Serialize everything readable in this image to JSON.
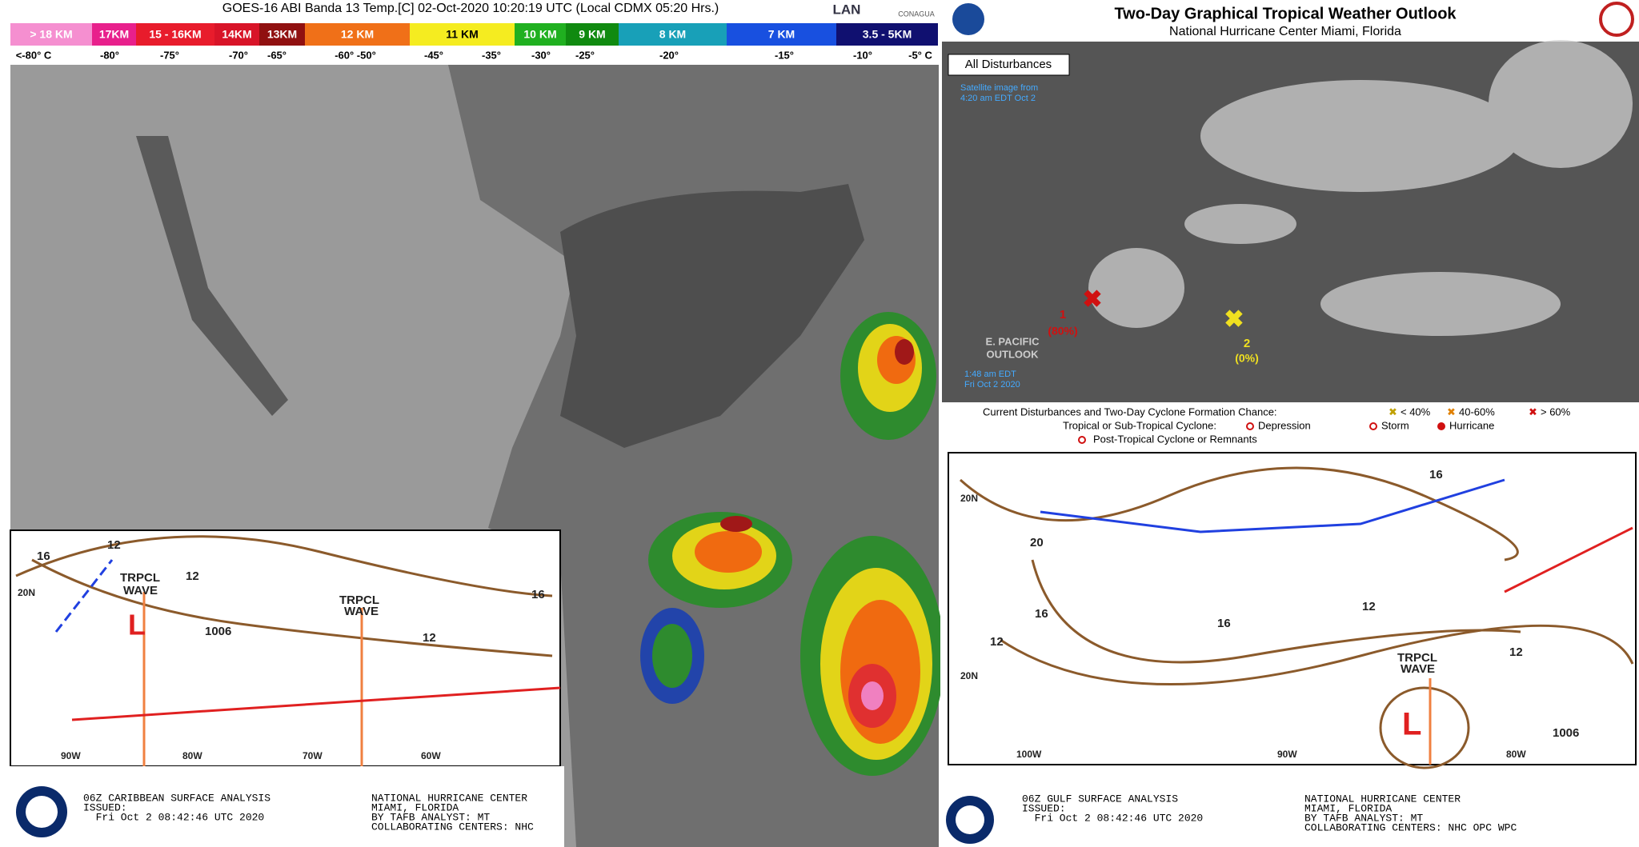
{
  "header": {
    "title": "GOES-16 ABI Banda 13 Temp.[C] 02-Oct-2020 10:20:19 UTC (Local CDMX  05:20 Hrs.)",
    "logo_lan": "LAN",
    "logo_conagua": "CONAGUA"
  },
  "colorbar": {
    "heights": [
      "> 18 KM",
      "17KM",
      "15 - 16KM",
      "14KM",
      "13KM",
      "12 KM",
      "11 KM",
      "10 KM",
      "9 KM",
      "8 KM",
      "7 KM",
      "3.5 - 5KM"
    ],
    "temps": [
      "<-80° C",
      "-80°",
      "-75°",
      "-70°",
      "-65°",
      "-60°  -50°",
      "-45°",
      "-35°",
      "-30°",
      "-25°",
      "-20°",
      "-15°",
      "-10°",
      "-5°   C"
    ]
  },
  "outlook": {
    "title": "Two-Day Graphical Tropical Weather Outlook",
    "subtitle": "National Hurricane Center Miami, Florida",
    "tab": "All Disturbances",
    "sat_line1": "Satellite image from",
    "sat_line2": "4:20 am EDT Oct 2",
    "d1": "1",
    "d1_pct": "(80%)",
    "d2": "2",
    "d2_pct": "(0%)",
    "ep_line1": "E. PACIFIC",
    "ep_line2": "OUTLOOK",
    "ep_time1": "1:48 am EDT",
    "ep_time2": "Fri Oct 2 2020"
  },
  "legend": {
    "line1": "Current Disturbances and Two-Day Cyclone Formation Chance:",
    "low": "< 40%",
    "mid": "40-60%",
    "high": "> 60%",
    "line2": "Tropical or Sub-Tropical Cyclone:",
    "depression": "Depression",
    "storm": "Storm",
    "hurricane": "Hurricane",
    "line3": "Post-Tropical Cyclone or Remnants"
  },
  "caribbean": {
    "labels": [
      "16",
      "12",
      "TRPCL",
      "WAVE",
      "12",
      "20N",
      "L",
      "1006",
      "TRPCL",
      "WAVE",
      "12",
      "16",
      "90W",
      "80W",
      "70W",
      "60W"
    ],
    "footer": [
      "06Z CARIBBEAN SURFACE ANALYSIS",
      "ISSUED:",
      "  Fri Oct 2 08:42:46 UTC 2020",
      "NATIONAL HURRICANE CENTER",
      "MIAMI, FLORIDA",
      "BY TAFB ANALYST: MT",
      "COLLABORATING CENTERS: NHC"
    ]
  },
  "gulf": {
    "labels": [
      "16",
      "20N",
      "20",
      "16",
      "12",
      "16",
      "12",
      "12",
      "TRPCL",
      "WAVE",
      "20N",
      "L",
      "1006",
      "100W",
      "90W",
      "80W"
    ],
    "footer": [
      "06Z GULF SURFACE ANALYSIS",
      "ISSUED:",
      "  Fri Oct 2 08:42:46 UTC 2020",
      "NATIONAL HURRICANE CENTER",
      "MIAMI, FLORIDA",
      "BY TAFB ANALYST: MT",
      "COLLABORATING CENTERS: NHC OPC WPC"
    ]
  }
}
